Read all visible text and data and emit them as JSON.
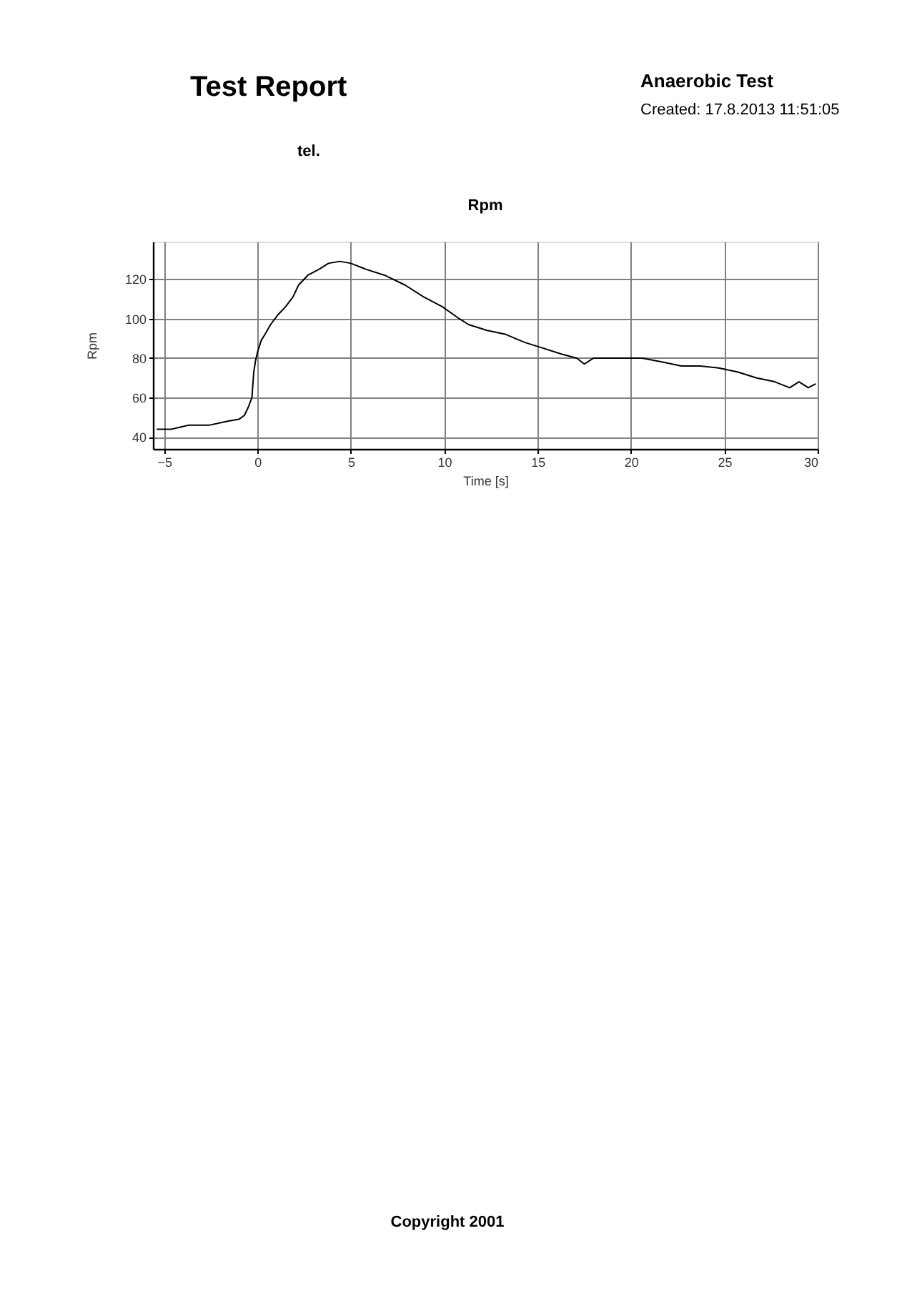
{
  "chart_data": {
    "type": "line",
    "title": "Rpm",
    "xlabel": "Time [s]",
    "ylabel": "Rpm",
    "annotations": [
      "Test Report",
      "Anaerobic Test",
      "Created: 17.8.2013 11:51:05",
      "tel.",
      "Copyright 2001"
    ],
    "x": [
      -5.4,
      -4.6,
      -3.7,
      -2.6,
      -1.6,
      -1.0,
      -0.7,
      -0.5,
      -0.3,
      -0.2,
      -0.1,
      0,
      0.2,
      0.4,
      0.7,
      1.1,
      1.5,
      1.9,
      2.2,
      2.7,
      3.3,
      3.8,
      4.4,
      5.0,
      5.8,
      6.8,
      7.9,
      8.9,
      9.9,
      10.8,
      11.3,
      12.3,
      13.3,
      14.3,
      15.3,
      16.3,
      17.1,
      17.5,
      18.0,
      18.9,
      20.0,
      20.6,
      21.7,
      22.7,
      23.7,
      24.7,
      25.7,
      26.7,
      27.7,
      28.5,
      29.0,
      29.5,
      29.9
    ],
    "series": [
      {
        "color": "#000000",
        "values": [
          44,
          44,
          46,
          46,
          48,
          49,
          51,
          55,
          60,
          73,
          79,
          83,
          89,
          92,
          97,
          102,
          106,
          111,
          117,
          122,
          125,
          128,
          129,
          128,
          125,
          122,
          117,
          111,
          106,
          100,
          97,
          94,
          92,
          88,
          85,
          82,
          80,
          77,
          80,
          80,
          80,
          80,
          78,
          76,
          76,
          75,
          73,
          70,
          68,
          65,
          68,
          65,
          67
        ]
      }
    ],
    "xlim": [
      -5.6,
      30
    ],
    "ylim": [
      34,
      139
    ],
    "xticks": [
      -5,
      0,
      5,
      10,
      15,
      20,
      25,
      30
    ],
    "yticks": [
      40,
      60,
      80,
      100,
      120
    ],
    "grid": true
  }
}
